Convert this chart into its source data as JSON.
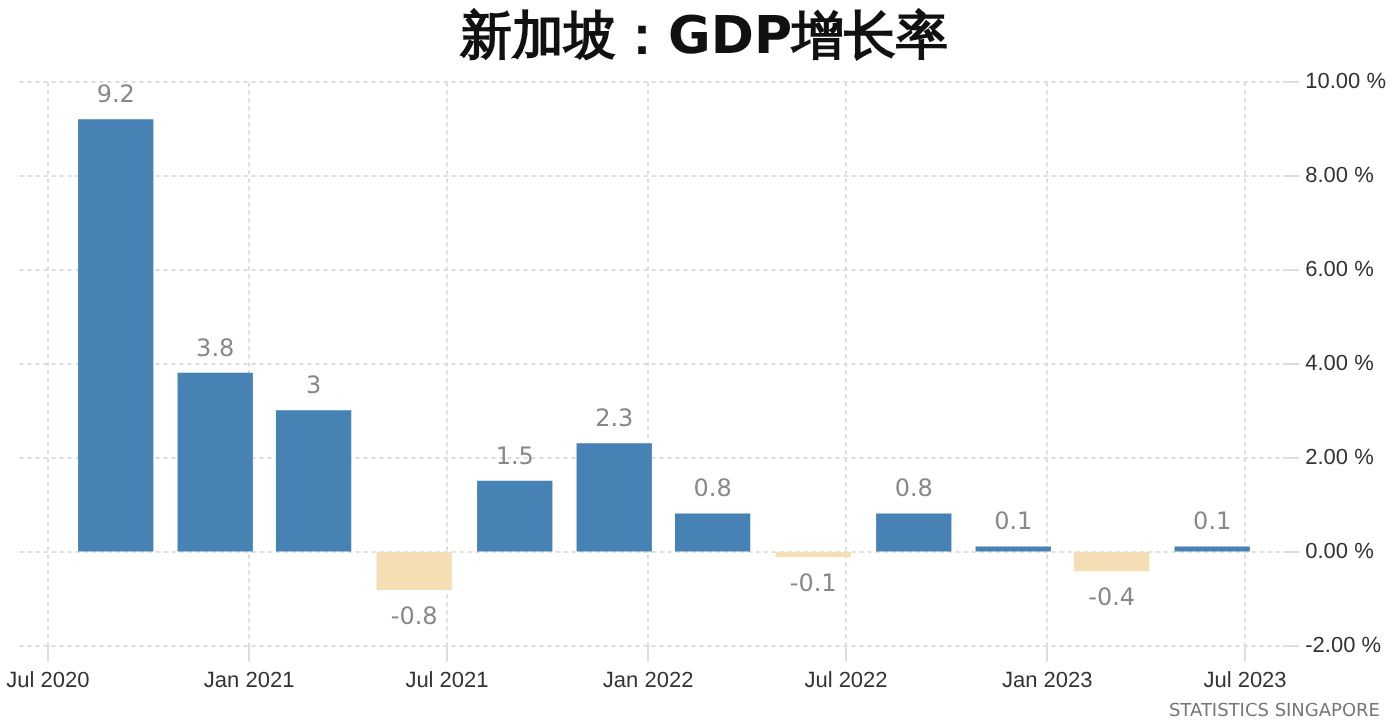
{
  "chart_data": {
    "type": "bar",
    "title": "新加坡：GDP增长率",
    "x": [
      "2020-09",
      "2020-12",
      "2021-03",
      "2021-06",
      "2021-09",
      "2021-12",
      "2022-03",
      "2022-06",
      "2022-09",
      "2022-12",
      "2023-03",
      "2023-06"
    ],
    "values": [
      9.2,
      3.8,
      3,
      -0.8,
      1.5,
      2.3,
      0.8,
      -0.1,
      0.8,
      0.1,
      -0.4,
      0.1
    ],
    "colors": [
      "#4682b4",
      "#4682b4",
      "#4682b4",
      "#f5deb3",
      "#4682b4",
      "#4682b4",
      "#4682b4",
      "#f5deb3",
      "#4682b4",
      "#4682b4",
      "#f5deb3",
      "#4682b4"
    ],
    "data_labels": true,
    "xlim": [
      "2020-06-05",
      "2023-08-05"
    ],
    "xticks": [
      {
        "value": "2020-07",
        "label": "Jul 2020"
      },
      {
        "value": "2021-01",
        "label": "Jan 2021"
      },
      {
        "value": "2021-07",
        "label": "Jul 2021"
      },
      {
        "value": "2022-01",
        "label": "Jan 2022"
      },
      {
        "value": "2022-07",
        "label": "Jul 2022"
      },
      {
        "value": "2023-01",
        "label": "Jan 2023"
      },
      {
        "value": "2023-07",
        "label": "Jul 2023"
      }
    ],
    "ylim": [
      -2,
      10
    ],
    "yticks": [
      {
        "value": -2,
        "label": "-2.00 %"
      },
      {
        "value": 0,
        "label": "0.00 %"
      },
      {
        "value": 2,
        "label": "2.00 %"
      },
      {
        "value": 4,
        "label": "4.00 %"
      },
      {
        "value": 6,
        "label": "6.00 %"
      },
      {
        "value": 8,
        "label": "8.00 %"
      },
      {
        "value": 10,
        "label": "10.00 %"
      }
    ],
    "grid": true,
    "legend": false,
    "annotations": [
      "STATISTICS SINGAPORE"
    ]
  }
}
